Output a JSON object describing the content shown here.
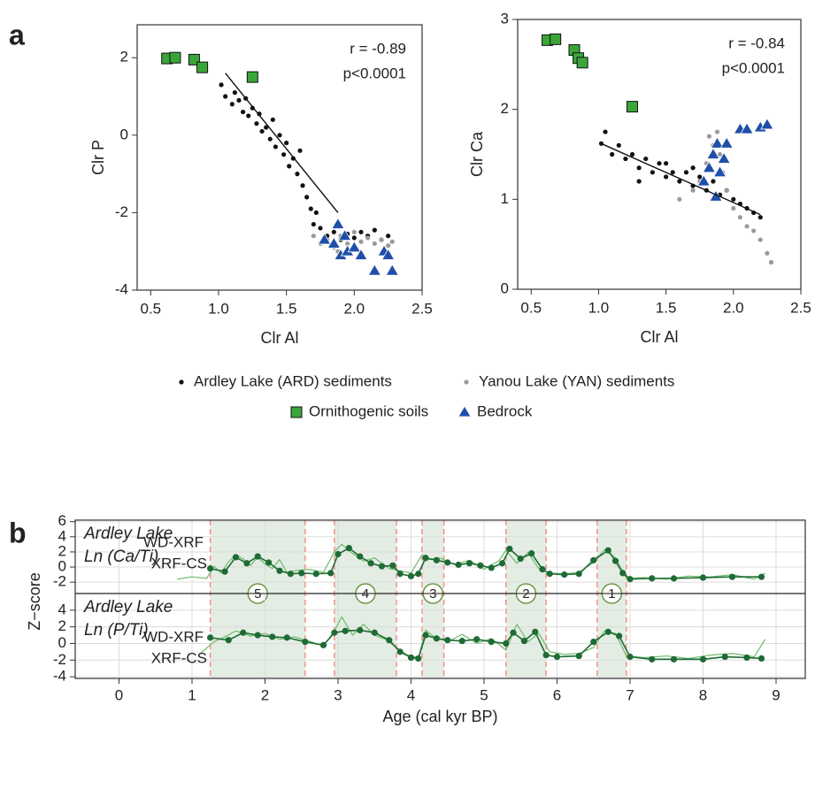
{
  "panels": [
    "a",
    "b"
  ],
  "chart_data": [
    {
      "type": "scatter",
      "x_label": "Clr Al",
      "y_label": "Clr P",
      "xlim": [
        0.4,
        2.5
      ],
      "ylim": [
        -4,
        2.85
      ],
      "xticks": [
        0.5,
        {
          "value": 1,
          "label": "1.0"
        },
        1.5,
        {
          "value": 2,
          "label": "2.0"
        },
        2.5
      ],
      "yticks": [
        -4,
        -2,
        0,
        2
      ],
      "annotations": [
        "r = -0.89",
        "p<0.0001"
      ],
      "fit": {
        "x": [
          1.05,
          1.88
        ],
        "y": [
          1.6,
          -2.0
        ]
      },
      "series": [
        {
          "name": "Ardley Lake (ARD) sediments",
          "color": "#111111",
          "marker": "circle",
          "points": [
            [
              1.02,
              1.3
            ],
            [
              1.05,
              1.0
            ],
            [
              1.1,
              0.8
            ],
            [
              1.12,
              1.1
            ],
            [
              1.15,
              0.9
            ],
            [
              1.18,
              0.6
            ],
            [
              1.2,
              0.95
            ],
            [
              1.22,
              0.5
            ],
            [
              1.25,
              0.7
            ],
            [
              1.28,
              0.3
            ],
            [
              1.3,
              0.55
            ],
            [
              1.32,
              0.1
            ],
            [
              1.35,
              0.2
            ],
            [
              1.38,
              -0.1
            ],
            [
              1.4,
              0.4
            ],
            [
              1.42,
              -0.3
            ],
            [
              1.45,
              0.0
            ],
            [
              1.48,
              -0.5
            ],
            [
              1.5,
              -0.2
            ],
            [
              1.52,
              -0.8
            ],
            [
              1.55,
              -0.6
            ],
            [
              1.58,
              -1.0
            ],
            [
              1.6,
              -0.4
            ],
            [
              1.62,
              -1.3
            ],
            [
              1.65,
              -1.6
            ],
            [
              1.68,
              -1.9
            ],
            [
              1.7,
              -2.3
            ],
            [
              1.72,
              -2.0
            ],
            [
              1.75,
              -2.4
            ],
            [
              1.8,
              -2.6
            ],
            [
              1.85,
              -2.5
            ],
            [
              1.9,
              -2.7
            ],
            [
              1.95,
              -2.55
            ],
            [
              2.0,
              -2.65
            ],
            [
              2.05,
              -2.5
            ],
            [
              2.1,
              -2.6
            ],
            [
              2.15,
              -2.45
            ],
            [
              2.2,
              -2.7
            ],
            [
              2.25,
              -2.6
            ]
          ]
        },
        {
          "name": "Yanou Lake (YAN) sediments",
          "color": "#9a9a9a",
          "marker": "circle",
          "points": [
            [
              1.7,
              -2.6
            ],
            [
              1.75,
              -2.8
            ],
            [
              1.8,
              -2.7
            ],
            [
              1.85,
              -2.9
            ],
            [
              1.9,
              -2.6
            ],
            [
              1.95,
              -2.8
            ],
            [
              2.0,
              -2.5
            ],
            [
              2.05,
              -2.75
            ],
            [
              2.1,
              -2.65
            ],
            [
              2.15,
              -2.8
            ],
            [
              2.2,
              -2.7
            ],
            [
              2.25,
              -2.85
            ],
            [
              2.28,
              -2.75
            ],
            [
              1.88,
              -3.0
            ],
            [
              1.98,
              -2.95
            ]
          ]
        },
        {
          "name": "Ornithogenic soils",
          "color": "#3aa63a",
          "marker": "square",
          "points": [
            [
              0.62,
              1.98
            ],
            [
              0.68,
              2.0
            ],
            [
              0.82,
              1.95
            ],
            [
              0.88,
              1.75
            ],
            [
              1.25,
              1.5
            ]
          ]
        },
        {
          "name": "Bedrock",
          "color": "#1f4fa8",
          "marker": "triangle",
          "points": [
            [
              1.78,
              -2.7
            ],
            [
              1.85,
              -2.8
            ],
            [
              1.88,
              -2.3
            ],
            [
              1.9,
              -3.1
            ],
            [
              1.93,
              -2.6
            ],
            [
              1.95,
              -3.0
            ],
            [
              2.0,
              -2.9
            ],
            [
              2.05,
              -3.1
            ],
            [
              2.15,
              -3.5
            ],
            [
              2.22,
              -3.0
            ],
            [
              2.25,
              -3.1
            ],
            [
              2.28,
              -3.5
            ]
          ]
        }
      ]
    },
    {
      "type": "scatter",
      "x_label": "Clr Al",
      "y_label": "Clr Ca",
      "xlim": [
        0.4,
        2.5
      ],
      "ylim": [
        0,
        3
      ],
      "xticks": [
        0.5,
        {
          "value": 1,
          "label": "1.0"
        },
        1.5,
        {
          "value": 2,
          "label": "2.0"
        },
        2.5
      ],
      "yticks": [
        0,
        1,
        2,
        3
      ],
      "annotations": [
        "r = -0.84",
        "p<0.0001"
      ],
      "fit": {
        "x": [
          1.02,
          2.2
        ],
        "y": [
          1.62,
          0.83
        ]
      },
      "series": [
        {
          "color": "#111111",
          "marker": "circle",
          "points": [
            [
              1.02,
              1.62
            ],
            [
              1.05,
              1.75
            ],
            [
              1.1,
              1.5
            ],
            [
              1.15,
              1.6
            ],
            [
              1.2,
              1.45
            ],
            [
              1.25,
              1.5
            ],
            [
              1.3,
              1.35
            ],
            [
              1.35,
              1.45
            ],
            [
              1.4,
              1.3
            ],
            [
              1.45,
              1.4
            ],
            [
              1.5,
              1.25
            ],
            [
              1.55,
              1.3
            ],
            [
              1.6,
              1.2
            ],
            [
              1.65,
              1.3
            ],
            [
              1.7,
              1.15
            ],
            [
              1.75,
              1.25
            ],
            [
              1.8,
              1.1
            ],
            [
              1.85,
              1.2
            ],
            [
              1.9,
              1.05
            ],
            [
              1.95,
              1.1
            ],
            [
              2.0,
              1.0
            ],
            [
              2.05,
              0.95
            ],
            [
              2.1,
              0.9
            ],
            [
              2.15,
              0.85
            ],
            [
              2.2,
              0.8
            ],
            [
              1.3,
              1.2
            ],
            [
              1.5,
              1.4
            ],
            [
              1.7,
              1.35
            ]
          ]
        },
        {
          "color": "#9a9a9a",
          "marker": "circle",
          "points": [
            [
              1.6,
              1.0
            ],
            [
              1.7,
              1.1
            ],
            [
              1.75,
              1.2
            ],
            [
              1.8,
              1.4
            ],
            [
              1.85,
              1.6
            ],
            [
              1.88,
              1.75
            ],
            [
              1.9,
              1.5
            ],
            [
              1.92,
              1.3
            ],
            [
              1.95,
              1.1
            ],
            [
              2.0,
              0.9
            ],
            [
              2.05,
              0.8
            ],
            [
              2.1,
              0.7
            ],
            [
              2.15,
              0.65
            ],
            [
              2.2,
              0.55
            ],
            [
              2.25,
              0.4
            ],
            [
              2.28,
              0.3
            ],
            [
              1.82,
              1.7
            ]
          ]
        },
        {
          "color": "#3aa63a",
          "marker": "square",
          "points": [
            [
              0.62,
              2.77
            ],
            [
              0.68,
              2.78
            ],
            [
              0.82,
              2.66
            ],
            [
              0.85,
              2.57
            ],
            [
              0.88,
              2.52
            ],
            [
              1.25,
              2.03
            ]
          ]
        },
        {
          "color": "#1f4fa8",
          "marker": "triangle",
          "points": [
            [
              1.78,
              1.2
            ],
            [
              1.82,
              1.35
            ],
            [
              1.85,
              1.5
            ],
            [
              1.88,
              1.62
            ],
            [
              1.9,
              1.3
            ],
            [
              1.93,
              1.45
            ],
            [
              1.95,
              1.62
            ],
            [
              2.05,
              1.78
            ],
            [
              2.1,
              1.78
            ],
            [
              2.2,
              1.8
            ],
            [
              2.25,
              1.83
            ],
            [
              1.87,
              1.03
            ]
          ]
        }
      ]
    },
    {
      "type": "line",
      "title_lines": [
        "Ardley Lake",
        "Ln (Ca/Ti)"
      ],
      "y_label": "Z−score",
      "xlim": [
        -0.6,
        9.4
      ],
      "ylim": [
        -3.5,
        6.2
      ],
      "yticks": [
        -2,
        0,
        2,
        4,
        6
      ],
      "zones": [
        {
          "range": [
            1.25,
            2.55
          ],
          "label": "5"
        },
        {
          "range": [
            2.95,
            3.8
          ],
          "label": "4"
        },
        {
          "range": [
            4.15,
            4.45
          ],
          "label": "3"
        },
        {
          "range": [
            5.3,
            5.85
          ],
          "label": "2"
        },
        {
          "range": [
            6.55,
            6.95
          ],
          "label": "1"
        }
      ],
      "series": [
        {
          "name": "XRF-CS",
          "color": "#6dbb6a",
          "x": [
            0.8,
            1.0,
            1.2,
            1.3,
            1.4,
            1.5,
            1.6,
            1.7,
            1.8,
            1.9,
            2.0,
            2.1,
            2.2,
            2.3,
            2.4,
            2.6,
            2.8,
            2.95,
            3.05,
            3.2,
            3.35,
            3.5,
            3.7,
            3.85,
            4.0,
            4.15,
            4.25,
            4.4,
            4.6,
            4.8,
            5.0,
            5.2,
            5.3,
            5.45,
            5.6,
            5.75,
            5.9,
            6.1,
            6.3,
            6.5,
            6.65,
            6.8,
            6.95,
            7.2,
            7.5,
            7.8,
            8.1,
            8.4,
            8.7,
            8.85
          ],
          "values": [
            -1.6,
            -1.3,
            -1.5,
            0.1,
            -0.8,
            0.7,
            1.6,
            1.1,
            0.2,
            1.3,
            0.4,
            -0.2,
            1.0,
            -0.7,
            -0.5,
            -0.3,
            -0.7,
            2.0,
            3.0,
            1.8,
            0.8,
            1.2,
            -0.2,
            -0.5,
            -0.8,
            1.6,
            1.0,
            1.2,
            0.3,
            0.9,
            -0.3,
            0.8,
            2.2,
            0.5,
            1.9,
            -0.2,
            -0.8,
            -0.9,
            -0.7,
            0.6,
            2.3,
            1.2,
            -1.5,
            -1.4,
            -1.6,
            -1.2,
            -1.3,
            -1.0,
            -1.6,
            -0.8
          ]
        },
        {
          "name": "WD-XRF",
          "color": "#1e6b35",
          "x": [
            1.25,
            1.45,
            1.6,
            1.75,
            1.9,
            2.05,
            2.2,
            2.35,
            2.5,
            2.7,
            2.9,
            3.0,
            3.15,
            3.3,
            3.45,
            3.6,
            3.75,
            3.85,
            4.0,
            4.1,
            4.2,
            4.35,
            4.5,
            4.65,
            4.8,
            4.95,
            5.1,
            5.25,
            5.35,
            5.5,
            5.65,
            5.8,
            5.9,
            6.1,
            6.3,
            6.5,
            6.7,
            6.8,
            6.9,
            7.0,
            7.3,
            7.6,
            8.0,
            8.4,
            8.8
          ],
          "values": [
            -0.2,
            -0.6,
            1.3,
            0.5,
            1.4,
            0.6,
            -0.5,
            -0.9,
            -0.8,
            -0.9,
            -0.8,
            1.7,
            2.5,
            1.4,
            0.5,
            0.1,
            0.2,
            -0.9,
            -1.2,
            -0.9,
            1.2,
            0.9,
            0.6,
            0.3,
            0.5,
            0.2,
            -0.1,
            0.5,
            2.4,
            1.1,
            1.8,
            -0.3,
            -0.9,
            -1.0,
            -0.9,
            0.9,
            2.2,
            0.8,
            -0.8,
            -1.6,
            -1.5,
            -1.5,
            -1.4,
            -1.3,
            -1.3
          ]
        }
      ]
    },
    {
      "type": "line",
      "title_lines": [
        "Ardley Lake",
        "Ln (P/Ti)"
      ],
      "x_label": "Age (cal kyr BP)",
      "xlim": [
        -0.6,
        9.4
      ],
      "ylim": [
        -4.2,
        6
      ],
      "yticks": [
        -4,
        -2,
        0,
        2,
        4
      ],
      "xticks": [
        0,
        1,
        2,
        3,
        4,
        5,
        6,
        7,
        8,
        9
      ],
      "series": [
        {
          "name": "XRF-CS",
          "color": "#6dbb6a",
          "x": [
            1.1,
            1.3,
            1.45,
            1.6,
            1.8,
            2.0,
            2.2,
            2.4,
            2.6,
            2.8,
            2.95,
            3.05,
            3.2,
            3.35,
            3.5,
            3.65,
            3.8,
            3.95,
            4.1,
            4.2,
            4.3,
            4.5,
            4.7,
            4.9,
            5.1,
            5.3,
            5.45,
            5.6,
            5.75,
            5.9,
            6.1,
            6.3,
            6.5,
            6.65,
            6.8,
            6.95,
            7.2,
            7.5,
            7.8,
            8.1,
            8.4,
            8.7,
            8.85
          ],
          "values": [
            -1.3,
            0.2,
            0.8,
            1.5,
            0.9,
            1.2,
            0.5,
            0.8,
            0.3,
            -0.3,
            1.5,
            3.2,
            1.0,
            2.3,
            1.0,
            0.5,
            -0.5,
            -1.4,
            -1.7,
            1.6,
            0.9,
            0.2,
            1.1,
            0.0,
            0.6,
            -0.8,
            2.3,
            0.2,
            1.2,
            -1.0,
            -1.3,
            -1.2,
            -0.5,
            1.5,
            1.2,
            -1.5,
            -1.7,
            -1.5,
            -1.8,
            -1.4,
            -1.2,
            -1.6,
            0.5
          ]
        },
        {
          "name": "WD-XRF",
          "color": "#1e6b35",
          "x": [
            1.25,
            1.5,
            1.7,
            1.9,
            2.1,
            2.3,
            2.55,
            2.8,
            2.95,
            3.1,
            3.3,
            3.5,
            3.7,
            3.85,
            4.0,
            4.1,
            4.2,
            4.35,
            4.5,
            4.7,
            4.9,
            5.1,
            5.3,
            5.4,
            5.55,
            5.7,
            5.85,
            6.0,
            6.3,
            6.5,
            6.7,
            6.85,
            7.0,
            7.3,
            7.6,
            8.0,
            8.3,
            8.6,
            8.8
          ],
          "values": [
            0.7,
            0.4,
            1.3,
            1.0,
            0.8,
            0.7,
            0.2,
            -0.2,
            1.3,
            1.5,
            1.6,
            1.3,
            0.4,
            -1.0,
            -1.7,
            -1.8,
            1.0,
            0.6,
            0.4,
            0.3,
            0.5,
            0.2,
            0.0,
            1.3,
            0.3,
            1.4,
            -1.4,
            -1.6,
            -1.5,
            0.2,
            1.4,
            0.9,
            -1.6,
            -1.9,
            -1.9,
            -1.9,
            -1.6,
            -1.7,
            -1.8
          ]
        }
      ]
    }
  ]
}
